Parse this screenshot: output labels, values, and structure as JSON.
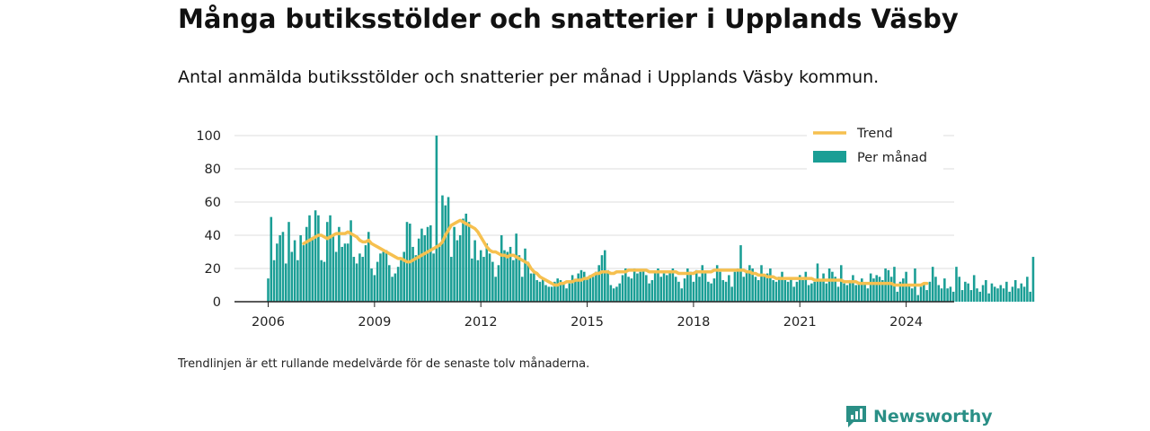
{
  "header": {
    "title": "Många butiksstölder och snatterier i Upplands Väsby",
    "subtitle": "Antal anmälda butiksstölder och snatterier per månad i Upplands Väsby kommun."
  },
  "footer": {
    "note": "Trendlinjen är ett rullande medelvärde för de senaste tolv månaderna.",
    "brand": "Newsworthy"
  },
  "colors": {
    "bars": "#1a9e95",
    "trend": "#f6c04f",
    "grid": "#dddddd",
    "brand": "#2a8f86"
  },
  "chart_data": {
    "type": "bar",
    "title": "",
    "xlabel": "",
    "ylabel": "",
    "xlim": [
      "2006-01",
      "2024-05"
    ],
    "ylim": [
      0,
      100
    ],
    "y_ticks": [
      0,
      20,
      40,
      60,
      80,
      100
    ],
    "x_ticks": [
      "2006",
      "2009",
      "2012",
      "2015",
      "2018",
      "2021",
      "2024"
    ],
    "grid": true,
    "legend_position": "top-right",
    "start_month": "2006-01",
    "series": [
      {
        "name": "Per månad",
        "type": "bar",
        "values": [
          14,
          51,
          25,
          35,
          40,
          42,
          23,
          48,
          30,
          37,
          25,
          40,
          34,
          45,
          52,
          39,
          55,
          52,
          25,
          24,
          48,
          52,
          40,
          30,
          45,
          33,
          35,
          35,
          49,
          27,
          23,
          29,
          27,
          34,
          42,
          20,
          16,
          24,
          29,
          30,
          31,
          22,
          15,
          17,
          21,
          25,
          30,
          48,
          47,
          33,
          28,
          38,
          44,
          40,
          45,
          46,
          29,
          100,
          35,
          64,
          58,
          63,
          27,
          45,
          37,
          40,
          50,
          53,
          48,
          26,
          37,
          25,
          31,
          27,
          35,
          29,
          24,
          15,
          22,
          40,
          31,
          30,
          33,
          25,
          41,
          28,
          15,
          32,
          24,
          17,
          17,
          13,
          12,
          14,
          10,
          9,
          9,
          12,
          14,
          13,
          11,
          8,
          11,
          16,
          13,
          17,
          19,
          18,
          14,
          16,
          15,
          18,
          22,
          28,
          31,
          19,
          10,
          8,
          9,
          11,
          16,
          20,
          15,
          14,
          20,
          17,
          18,
          19,
          16,
          11,
          13,
          18,
          20,
          15,
          17,
          16,
          18,
          20,
          15,
          12,
          8,
          14,
          20,
          18,
          12,
          19,
          15,
          22,
          17,
          12,
          11,
          14,
          22,
          18,
          13,
          12,
          16,
          9,
          18,
          20,
          34,
          15,
          19,
          22,
          20,
          15,
          13,
          22,
          16,
          17,
          20,
          13,
          12,
          15,
          18,
          13,
          12,
          14,
          9,
          12,
          16,
          13,
          18,
          10,
          11,
          12,
          23,
          13,
          17,
          11,
          20,
          18,
          15,
          9,
          22,
          11,
          10,
          13,
          16,
          10,
          12,
          14,
          11,
          8,
          17,
          14,
          16,
          15,
          13,
          20,
          19,
          15,
          21,
          6,
          12,
          14,
          18,
          10,
          8,
          20,
          4,
          9,
          11,
          7,
          12,
          21,
          15,
          10,
          8,
          14,
          8,
          9,
          6,
          21,
          15,
          7,
          12,
          11,
          7,
          16,
          8,
          6,
          10,
          13,
          5,
          11,
          9,
          8,
          10,
          8,
          12,
          6,
          9,
          13,
          8,
          11,
          9,
          15,
          6,
          27
        ]
      },
      {
        "name": "Trend",
        "type": "line",
        "start_month": "2007-01",
        "values": [
          35,
          36,
          37,
          38,
          39,
          40,
          40,
          39,
          38,
          39,
          40,
          41,
          41,
          41,
          41,
          42,
          41,
          40,
          39,
          37,
          36,
          36,
          37,
          35,
          34,
          33,
          32,
          31,
          30,
          29,
          28,
          27,
          26,
          26,
          25,
          24,
          24,
          25,
          26,
          27,
          28,
          29,
          30,
          31,
          32,
          33,
          34,
          36,
          40,
          43,
          46,
          47,
          48,
          49,
          48,
          47,
          46,
          45,
          44,
          42,
          39,
          36,
          33,
          31,
          30,
          30,
          29,
          28,
          28,
          27,
          28,
          28,
          27,
          26,
          25,
          24,
          23,
          20,
          18,
          17,
          15,
          14,
          13,
          12,
          11,
          10,
          10,
          11,
          11,
          12,
          12,
          12,
          13,
          13,
          13,
          14,
          14,
          15,
          16,
          17,
          17,
          18,
          18,
          18,
          17,
          17,
          18,
          18,
          18,
          18,
          19,
          19,
          19,
          19,
          19,
          19,
          19,
          18,
          18,
          18,
          18,
          18,
          18,
          18,
          18,
          18,
          18,
          17,
          17,
          17,
          17,
          17,
          17,
          18,
          18,
          18,
          18,
          18,
          18,
          19,
          19,
          19,
          19,
          19,
          19,
          19,
          19,
          19,
          19,
          19,
          18,
          18,
          17,
          17,
          16,
          16,
          16,
          15,
          15,
          15,
          14,
          14,
          14,
          14,
          14,
          14,
          14,
          14,
          14,
          14,
          14,
          14,
          14,
          13,
          13,
          13,
          13,
          13,
          13,
          13,
          13,
          13,
          13,
          12,
          12,
          12,
          12,
          12,
          11,
          11,
          11,
          11,
          11,
          11,
          11,
          11,
          11,
          11,
          11,
          11,
          10,
          10,
          10,
          10,
          10,
          10,
          10,
          10,
          10,
          10,
          11,
          11
        ]
      }
    ]
  }
}
